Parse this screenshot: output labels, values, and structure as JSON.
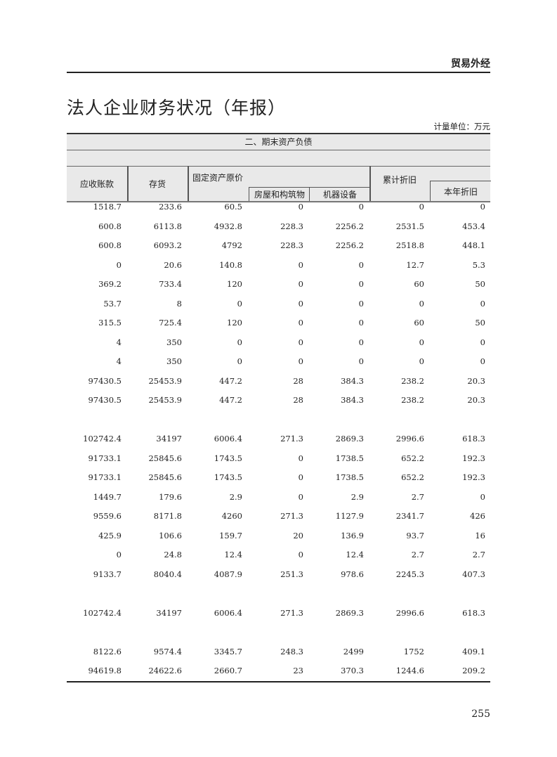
{
  "header": {
    "section": "贸易外经",
    "title": "法人企业财务状况（年报）",
    "unit": "计量单位：万元"
  },
  "table": {
    "group_title": "二、期末资产负债",
    "columns": {
      "c1": "应收账款",
      "c2": "存货",
      "c3": "固定资产原价",
      "c4": "房屋和构筑物",
      "c5": "机器设备",
      "c6": "累计折旧",
      "c7": "本年折旧"
    },
    "rows": [
      [
        "1518.7",
        "233.6",
        "60.5",
        "0",
        "0",
        "0",
        "0"
      ],
      [
        "600.8",
        "6113.8",
        "4932.8",
        "228.3",
        "2256.2",
        "2531.5",
        "453.4"
      ],
      [
        "600.8",
        "6093.2",
        "4792",
        "228.3",
        "2256.2",
        "2518.8",
        "448.1"
      ],
      [
        "0",
        "20.6",
        "140.8",
        "0",
        "0",
        "12.7",
        "5.3"
      ],
      [
        "369.2",
        "733.4",
        "120",
        "0",
        "0",
        "60",
        "50"
      ],
      [
        "53.7",
        "8",
        "0",
        "0",
        "0",
        "0",
        "0"
      ],
      [
        "315.5",
        "725.4",
        "120",
        "0",
        "0",
        "60",
        "50"
      ],
      [
        "4",
        "350",
        "0",
        "0",
        "0",
        "0",
        "0"
      ],
      [
        "4",
        "350",
        "0",
        "0",
        "0",
        "0",
        "0"
      ],
      [
        "97430.5",
        "25453.9",
        "447.2",
        "28",
        "384.3",
        "238.2",
        "20.3"
      ],
      [
        "97430.5",
        "25453.9",
        "447.2",
        "28",
        "384.3",
        "238.2",
        "20.3"
      ],
      [],
      [
        "102742.4",
        "34197",
        "6006.4",
        "271.3",
        "2869.3",
        "2996.6",
        "618.3"
      ],
      [
        "91733.1",
        "25845.6",
        "1743.5",
        "0",
        "1738.5",
        "652.2",
        "192.3"
      ],
      [
        "91733.1",
        "25845.6",
        "1743.5",
        "0",
        "1738.5",
        "652.2",
        "192.3"
      ],
      [
        "1449.7",
        "179.6",
        "2.9",
        "0",
        "2.9",
        "2.7",
        "0"
      ],
      [
        "9559.6",
        "8171.8",
        "4260",
        "271.3",
        "1127.9",
        "2341.7",
        "426"
      ],
      [
        "425.9",
        "106.6",
        "159.7",
        "20",
        "136.9",
        "93.7",
        "16"
      ],
      [
        "0",
        "24.8",
        "12.4",
        "0",
        "12.4",
        "2.7",
        "2.7"
      ],
      [
        "9133.7",
        "8040.4",
        "4087.9",
        "251.3",
        "978.6",
        "2245.3",
        "407.3"
      ],
      [],
      [
        "102742.4",
        "34197",
        "6006.4",
        "271.3",
        "2869.3",
        "2996.6",
        "618.3"
      ],
      [],
      [
        "8122.6",
        "9574.4",
        "3345.7",
        "248.3",
        "2499",
        "1752",
        "409.1"
      ],
      [
        "94619.8",
        "24622.6",
        "2660.7",
        "23",
        "370.3",
        "1244.6",
        "209.2"
      ]
    ]
  },
  "footer": {
    "page_number": "255"
  }
}
